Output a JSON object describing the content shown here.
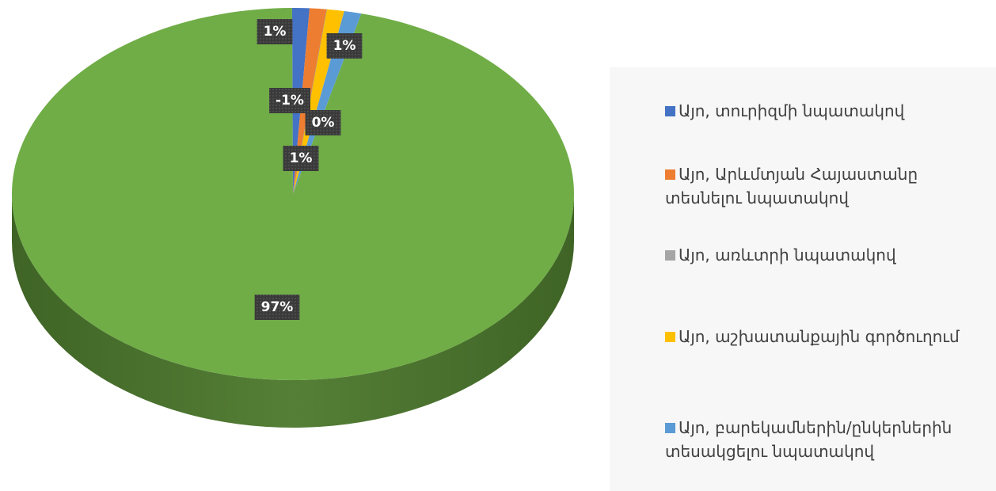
{
  "chart_data": {
    "type": "pie",
    "categories": [
      "Այո, տուրիզմի նպատակով",
      "Այո, Արևմտյան Հայաստանը տեսնելու նպատակով",
      "Այո, առևտրի նպատակով",
      "Այո, աշխատանքային գործուղում",
      "Այո, բարեկամներին/ընկերներին տեսակցելու նպատակով",
      null
    ],
    "values": [
      1,
      -1,
      0,
      1,
      1,
      97
    ],
    "value_labels": [
      "1%",
      "-1%",
      "0%",
      "1%",
      "1%",
      "97%"
    ],
    "colors": [
      "#4472c4",
      "#ed7d31",
      "#a5a5a5",
      "#ffc000",
      "#5b9bd5",
      "#70ad47"
    ],
    "legend": "right"
  }
}
